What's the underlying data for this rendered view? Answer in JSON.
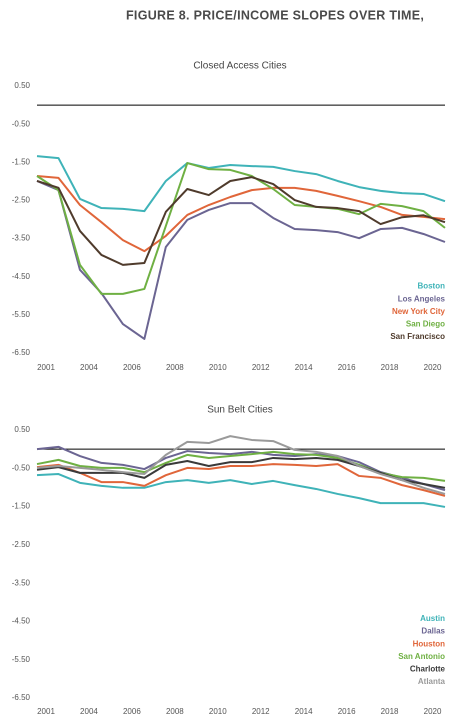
{
  "header": {
    "title": "FIGURE 8. PRICE/INCOME SLOPES OVER TIME,"
  },
  "chart_data": [
    {
      "type": "line",
      "title": "Closed Access Cities",
      "categories": [
        "2001",
        null,
        "2004",
        null,
        "2006",
        null,
        "2008",
        null,
        "2010",
        null,
        "2012",
        null,
        "2014",
        null,
        "2016",
        null,
        "2018",
        null,
        "2020",
        null
      ],
      "series": [
        {
          "name": "Boston",
          "color": "#3fb3b8",
          "values": [
            -1.34,
            -1.39,
            -2.46,
            -2.7,
            -2.72,
            -2.78,
            -1.99,
            -1.52,
            -1.65,
            -1.57,
            -1.6,
            -1.62,
            -1.73,
            -1.81,
            -1.99,
            -2.15,
            -2.25,
            -2.31,
            -2.33,
            -2.52
          ]
        },
        {
          "name": "Los Angeles",
          "color": "#6b6592",
          "values": [
            -1.99,
            -2.23,
            -4.32,
            -4.93,
            -5.74,
            -6.13,
            -3.72,
            -3.01,
            -2.75,
            -2.57,
            -2.57,
            -2.96,
            -3.25,
            -3.28,
            -3.33,
            -3.49,
            -3.25,
            -3.22,
            -3.38,
            -3.59
          ]
        },
        {
          "name": "New York City",
          "color": "#e0663a",
          "values": [
            -1.86,
            -1.91,
            -2.62,
            -3.07,
            -3.54,
            -3.83,
            -3.43,
            -2.88,
            -2.62,
            -2.41,
            -2.23,
            -2.17,
            -2.17,
            -2.25,
            -2.38,
            -2.52,
            -2.67,
            -2.88,
            -2.93,
            -2.99
          ]
        },
        {
          "name": "San Diego",
          "color": "#6fb043",
          "values": [
            -1.86,
            -2.23,
            -4.19,
            -4.95,
            -4.95,
            -4.82,
            -3.17,
            -1.52,
            -1.68,
            -1.7,
            -1.86,
            -2.2,
            -2.62,
            -2.67,
            -2.72,
            -2.86,
            -2.59,
            -2.65,
            -2.78,
            -3.22
          ]
        },
        {
          "name": "San Francisco",
          "color": "#4f3b2c",
          "values": [
            -1.99,
            -2.17,
            -3.3,
            -3.93,
            -4.19,
            -4.14,
            -2.8,
            -2.2,
            -2.36,
            -1.99,
            -1.89,
            -2.07,
            -2.49,
            -2.67,
            -2.7,
            -2.78,
            -3.12,
            -2.94,
            -2.89,
            -3.07
          ]
        }
      ],
      "ylim": [
        -6.5,
        0.5
      ],
      "yticks": [
        {
          "value": 0.5,
          "label": "0.50"
        },
        {
          "value": -0.5,
          "label": "-0.50"
        },
        {
          "value": -1.5,
          "label": "-1.50"
        },
        {
          "value": -2.5,
          "label": "-2.50"
        },
        {
          "value": -3.5,
          "label": "-3.50"
        },
        {
          "value": -4.5,
          "label": "-4.50"
        },
        {
          "value": -5.5,
          "label": "-5.50"
        },
        {
          "value": -6.5,
          "label": "-6.50"
        }
      ],
      "reference_line": 0,
      "grid": false,
      "legend": "lower right"
    },
    {
      "type": "line",
      "title": "Sun Belt Cities",
      "categories": [
        "2001",
        null,
        "2004",
        null,
        "2006",
        null,
        "2008",
        null,
        "2010",
        null,
        "2012",
        null,
        "2014",
        null,
        "2016",
        null,
        "2018",
        null,
        "2020",
        null
      ],
      "series": [
        {
          "name": "Austin",
          "color": "#3fb3b8",
          "values": [
            -0.68,
            -0.65,
            -0.88,
            -0.96,
            -1.01,
            -1.01,
            -0.86,
            -0.81,
            -0.88,
            -0.81,
            -0.91,
            -0.83,
            -0.94,
            -1.04,
            -1.17,
            -1.28,
            -1.41,
            -1.41,
            -1.41,
            -1.51
          ]
        },
        {
          "name": "Dallas",
          "color": "#6b6592",
          "values": [
            0.0,
            0.06,
            -0.18,
            -0.36,
            -0.41,
            -0.52,
            -0.23,
            -0.05,
            -0.1,
            -0.13,
            -0.07,
            -0.15,
            -0.18,
            -0.13,
            -0.18,
            -0.34,
            -0.6,
            -0.75,
            -0.91,
            -1.07
          ]
        },
        {
          "name": "Houston",
          "color": "#e0663a",
          "values": [
            -0.47,
            -0.41,
            -0.62,
            -0.86,
            -0.86,
            -0.96,
            -0.68,
            -0.49,
            -0.52,
            -0.44,
            -0.44,
            -0.39,
            -0.41,
            -0.44,
            -0.39,
            -0.7,
            -0.75,
            -0.94,
            -1.07,
            -1.22
          ]
        },
        {
          "name": "San Antonio",
          "color": "#6fb043",
          "values": [
            -0.39,
            -0.28,
            -0.44,
            -0.49,
            -0.49,
            -0.6,
            -0.36,
            -0.15,
            -0.23,
            -0.18,
            -0.13,
            -0.07,
            -0.13,
            -0.15,
            -0.23,
            -0.41,
            -0.62,
            -0.73,
            -0.75,
            -0.83
          ]
        },
        {
          "name": "Charlotte",
          "color": "#3a3a3a",
          "values": [
            -0.54,
            -0.47,
            -0.62,
            -0.62,
            -0.62,
            -0.75,
            -0.41,
            -0.31,
            -0.44,
            -0.34,
            -0.34,
            -0.23,
            -0.26,
            -0.23,
            -0.28,
            -0.44,
            -0.62,
            -0.81,
            -0.91,
            -1.01
          ]
        },
        {
          "name": "Atlanta",
          "color": "#9a9a9a",
          "values": [
            -0.49,
            -0.44,
            -0.49,
            -0.54,
            -0.6,
            -0.65,
            -0.15,
            0.19,
            0.16,
            0.34,
            0.24,
            0.21,
            -0.02,
            -0.07,
            -0.18,
            -0.44,
            -0.65,
            -0.81,
            -1.01,
            -1.17
          ]
        }
      ],
      "ylim": [
        -6.5,
        0.5
      ],
      "yticks": [
        {
          "value": 0.5,
          "label": "0.50"
        },
        {
          "value": -0.5,
          "label": "-0.50"
        },
        {
          "value": -1.5,
          "label": "-1.50"
        },
        {
          "value": -2.5,
          "label": "-2.50"
        },
        {
          "value": -3.5,
          "label": "-3.50"
        },
        {
          "value": -4.5,
          "label": "-4.50"
        },
        {
          "value": -5.5,
          "label": "-5.50"
        },
        {
          "value": -6.5,
          "label": "-6.50"
        }
      ],
      "reference_line": 0,
      "grid": false,
      "legend": "lower right"
    }
  ]
}
